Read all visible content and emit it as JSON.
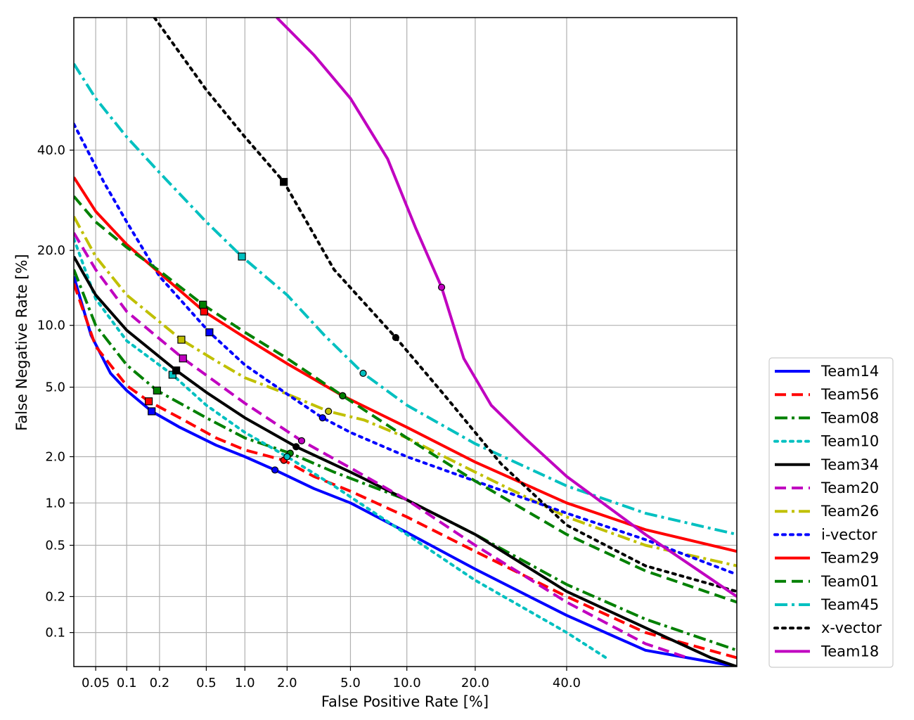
{
  "chart_data": {
    "type": "line",
    "title": "",
    "xlabel": "False Positive Rate [%]",
    "ylabel": "False Negative Rate [%]",
    "x_scale": "probit",
    "y_scale": "probit",
    "xlim": [
      0.03,
      80
    ],
    "ylim": [
      0.05,
      70
    ],
    "x_ticks": [
      0.05,
      0.1,
      0.2,
      0.5,
      1.0,
      2.0,
      5.0,
      10.0,
      20.0,
      40.0
    ],
    "x_tick_labels": [
      "0.05",
      "0.1",
      "0.2",
      "0.5",
      "1.0",
      "2.0",
      "5.0",
      "10.0",
      "20.0",
      "40.0"
    ],
    "y_ticks": [
      0.1,
      0.2,
      0.5,
      1.0,
      2.0,
      5.0,
      10.0,
      20.0,
      40.0
    ],
    "y_tick_labels": [
      "0.1",
      "0.2",
      "0.5",
      "1.0",
      "2.0",
      "5.0",
      "10.0",
      "20.0",
      "40.0"
    ],
    "grid": true,
    "legend_position": "outside-right-bottom",
    "series": [
      {
        "name": "Team14",
        "color": "#0000ff",
        "style": "solid",
        "points": [
          [
            0.03,
            16
          ],
          [
            0.045,
            9
          ],
          [
            0.07,
            5.9
          ],
          [
            0.1,
            4.8
          ],
          [
            0.17,
            3.7
          ],
          [
            0.3,
            3.0
          ],
          [
            0.6,
            2.35
          ],
          [
            1.0,
            2.0
          ],
          [
            1.65,
            1.65
          ],
          [
            3.0,
            1.25
          ],
          [
            5.0,
            1.0
          ],
          [
            10.0,
            0.62
          ],
          [
            20.0,
            0.33
          ],
          [
            40.0,
            0.14
          ],
          [
            60.0,
            0.07
          ],
          [
            80.0,
            0.05
          ]
        ],
        "markers": {
          "shape": "square",
          "points": [
            [
              0.17,
              3.7
            ]
          ]
        },
        "eer_point": [
          1.65,
          1.65
        ]
      },
      {
        "name": "Team56",
        "color": "#ff0000",
        "style": "dashed",
        "points": [
          [
            0.03,
            15
          ],
          [
            0.05,
            8
          ],
          [
            0.1,
            5.1
          ],
          [
            0.16,
            4.2
          ],
          [
            0.3,
            3.4
          ],
          [
            0.6,
            2.6
          ],
          [
            1.0,
            2.2
          ],
          [
            1.9,
            1.9
          ],
          [
            3.0,
            1.5
          ],
          [
            5.0,
            1.2
          ],
          [
            10.0,
            0.8
          ],
          [
            20.0,
            0.45
          ],
          [
            40.0,
            0.2
          ],
          [
            60.0,
            0.1
          ],
          [
            80.0,
            0.06
          ]
        ],
        "markers": {
          "shape": "square",
          "points": [
            [
              0.16,
              4.2
            ]
          ]
        },
        "eer_point": [
          1.9,
          1.9
        ]
      },
      {
        "name": "Team08",
        "color": "#008000",
        "style": "dashdot",
        "points": [
          [
            0.03,
            17
          ],
          [
            0.05,
            10
          ],
          [
            0.1,
            6.5
          ],
          [
            0.19,
            4.8
          ],
          [
            0.5,
            3.4
          ],
          [
            1.0,
            2.6
          ],
          [
            2.1,
            2.1
          ],
          [
            4.0,
            1.6
          ],
          [
            10.0,
            1.05
          ],
          [
            20.0,
            0.6
          ],
          [
            40.0,
            0.25
          ],
          [
            60.0,
            0.13
          ],
          [
            80.0,
            0.07
          ]
        ],
        "markers": {
          "shape": "square",
          "points": [
            [
              0.19,
              4.8
            ]
          ]
        },
        "eer_point": [
          2.1,
          2.1
        ]
      },
      {
        "name": "Team10",
        "color": "#00c0c0",
        "style": "dotted",
        "points": [
          [
            0.03,
            22
          ],
          [
            0.05,
            13
          ],
          [
            0.1,
            8.5
          ],
          [
            0.26,
            5.8
          ],
          [
            0.5,
            4.0
          ],
          [
            1.0,
            2.8
          ],
          [
            2.0,
            2.0
          ],
          [
            4.0,
            1.3
          ],
          [
            10.0,
            0.6
          ],
          [
            20.0,
            0.27
          ],
          [
            40.0,
            0.1
          ],
          [
            50.0,
            0.06
          ]
        ],
        "markers": {
          "shape": "square",
          "points": [
            [
              0.26,
              5.8
            ]
          ]
        },
        "eer_point": [
          2.0,
          2.0
        ]
      },
      {
        "name": "Team34",
        "color": "#000000",
        "style": "solid",
        "points": [
          [
            0.03,
            19
          ],
          [
            0.05,
            13.5
          ],
          [
            0.1,
            9.5
          ],
          [
            0.28,
            6.1
          ],
          [
            0.5,
            4.7
          ],
          [
            1.0,
            3.4
          ],
          [
            2.3,
            2.3
          ],
          [
            5.0,
            1.6
          ],
          [
            10.0,
            1.05
          ],
          [
            20.0,
            0.6
          ],
          [
            40.0,
            0.22
          ],
          [
            60.0,
            0.11
          ],
          [
            75.0,
            0.06
          ],
          [
            80.0,
            0.05
          ]
        ],
        "markers": {
          "shape": "square",
          "points": [
            [
              0.28,
              6.1
            ]
          ]
        },
        "eer_point": [
          2.3,
          2.3
        ]
      },
      {
        "name": "Team20",
        "color": "#c000c0",
        "style": "dashed",
        "points": [
          [
            0.03,
            23
          ],
          [
            0.05,
            17
          ],
          [
            0.1,
            11.5
          ],
          [
            0.32,
            7.0
          ],
          [
            0.6,
            5.3
          ],
          [
            1.0,
            4.1
          ],
          [
            2.5,
            2.5
          ],
          [
            5.0,
            1.7
          ],
          [
            10.0,
            1.05
          ],
          [
            20.0,
            0.5
          ],
          [
            40.0,
            0.18
          ],
          [
            60.0,
            0.08
          ],
          [
            70.0,
            0.06
          ]
        ],
        "markers": {
          "shape": "square",
          "points": [
            [
              0.32,
              7.0
            ]
          ]
        },
        "eer_point": [
          2.5,
          2.5
        ]
      },
      {
        "name": "Team26",
        "color": "#c0c000",
        "style": "dashdot",
        "points": [
          [
            0.03,
            26
          ],
          [
            0.05,
            19
          ],
          [
            0.1,
            13.5
          ],
          [
            0.31,
            8.6
          ],
          [
            0.6,
            6.8
          ],
          [
            1.0,
            5.6
          ],
          [
            2.0,
            4.6
          ],
          [
            3.7,
            3.7
          ],
          [
            6.0,
            3.3
          ],
          [
            10.0,
            2.6
          ],
          [
            20.0,
            1.6
          ],
          [
            40.0,
            0.8
          ],
          [
            60.0,
            0.5
          ],
          [
            80.0,
            0.35
          ]
        ],
        "markers": {
          "shape": "square",
          "points": [
            [
              0.31,
              8.6
            ]
          ]
        },
        "eer_point": [
          3.7,
          3.7
        ]
      },
      {
        "name": "i-vector",
        "color": "#0000ff",
        "style": "dotted",
        "points": [
          [
            0.03,
            46
          ],
          [
            0.06,
            33
          ],
          [
            0.1,
            25
          ],
          [
            0.2,
            16
          ],
          [
            0.53,
            9.3
          ],
          [
            1.0,
            6.5
          ],
          [
            2.0,
            4.6
          ],
          [
            3.4,
            3.4
          ],
          [
            5.0,
            2.8
          ],
          [
            10.0,
            2.0
          ],
          [
            20.0,
            1.4
          ],
          [
            40.0,
            0.85
          ],
          [
            60.0,
            0.55
          ],
          [
            80.0,
            0.3
          ]
        ],
        "markers": {
          "shape": "square",
          "points": [
            [
              0.53,
              9.3
            ]
          ]
        },
        "eer_point": [
          3.4,
          3.4
        ]
      },
      {
        "name": "Team29",
        "color": "#ff0000",
        "style": "solid",
        "points": [
          [
            0.03,
            34
          ],
          [
            0.05,
            27
          ],
          [
            0.1,
            21
          ],
          [
            0.2,
            16.5
          ],
          [
            0.48,
            11.5
          ],
          [
            1.0,
            8.8
          ],
          [
            2.0,
            6.6
          ],
          [
            4.5,
            4.5
          ],
          [
            10.0,
            3.0
          ],
          [
            20.0,
            1.85
          ],
          [
            40.0,
            1.0
          ],
          [
            60.0,
            0.65
          ],
          [
            80.0,
            0.45
          ]
        ],
        "markers": {
          "shape": "square",
          "points": [
            [
              0.48,
              11.5
            ]
          ]
        },
        "eer_point": [
          4.5,
          4.5
        ]
      },
      {
        "name": "Team01",
        "color": "#008000",
        "style": "dashed",
        "points": [
          [
            0.03,
            30
          ],
          [
            0.05,
            25
          ],
          [
            0.1,
            20.5
          ],
          [
            0.2,
            16.8
          ],
          [
            0.47,
            12.3
          ],
          [
            1.0,
            9.3
          ],
          [
            2.0,
            7.0
          ],
          [
            4.5,
            4.5
          ],
          [
            10.0,
            2.6
          ],
          [
            20.0,
            1.4
          ],
          [
            40.0,
            0.6
          ],
          [
            60.0,
            0.32
          ],
          [
            80.0,
            0.18
          ]
        ],
        "markers": {
          "shape": "square",
          "points": [
            [
              0.47,
              12.3
            ]
          ]
        },
        "eer_point": [
          4.5,
          4.5
        ]
      },
      {
        "name": "Team45",
        "color": "#00c0c0",
        "style": "dashdot",
        "points": [
          [
            0.03,
            60
          ],
          [
            0.05,
            52
          ],
          [
            0.1,
            43
          ],
          [
            0.2,
            35
          ],
          [
            0.5,
            25
          ],
          [
            0.95,
            19
          ],
          [
            2.0,
            13.5
          ],
          [
            3.5,
            9.0
          ],
          [
            5.9,
            5.9
          ],
          [
            10.0,
            4.0
          ],
          [
            20.0,
            2.4
          ],
          [
            40.0,
            1.3
          ],
          [
            60.0,
            0.85
          ],
          [
            80.0,
            0.6
          ]
        ],
        "markers": {
          "shape": "square",
          "points": [
            [
              0.95,
              19
            ]
          ]
        },
        "eer_point": [
          5.9,
          5.9
        ]
      },
      {
        "name": "x-vector",
        "color": "#000000",
        "style": "dotted",
        "points": [
          [
            0.18,
            70
          ],
          [
            0.5,
            54
          ],
          [
            1.0,
            43
          ],
          [
            1.9,
            33
          ],
          [
            4.0,
            17
          ],
          [
            8.8,
            8.8
          ],
          [
            15.0,
            4.5
          ],
          [
            25.0,
            1.8
          ],
          [
            40.0,
            0.7
          ],
          [
            60.0,
            0.35
          ],
          [
            80.0,
            0.22
          ]
        ],
        "markers": {
          "shape": "square",
          "points": [
            [
              1.9,
              33
            ]
          ]
        },
        "eer_point": [
          8.8,
          8.8
        ]
      },
      {
        "name": "Team18",
        "color": "#c000c0",
        "style": "solid",
        "points": [
          [
            1.7,
            70
          ],
          [
            3.0,
            62
          ],
          [
            5.0,
            52
          ],
          [
            8.0,
            38
          ],
          [
            11.0,
            24
          ],
          [
            14.5,
            14.5
          ],
          [
            18.0,
            7.0
          ],
          [
            23.0,
            4.0
          ],
          [
            30.0,
            2.6
          ],
          [
            40.0,
            1.5
          ],
          [
            60.0,
            0.6
          ],
          [
            80.0,
            0.2
          ]
        ],
        "markers": {
          "shape": "square",
          "points": []
        },
        "eer_point": [
          14.5,
          14.5
        ]
      }
    ]
  }
}
